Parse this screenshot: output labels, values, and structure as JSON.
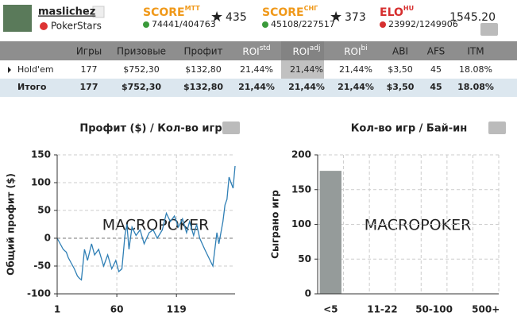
{
  "header": {
    "user": "maslichez",
    "site": "PokerStars",
    "scores": [
      {
        "label": "SCORE",
        "sup": "MTT",
        "rank": "74441/404763",
        "points": "435"
      },
      {
        "label": "SCORE",
        "sup": "СНГ",
        "rank": "45108/227517",
        "points": "373"
      },
      {
        "label": "ELO",
        "sup": "HU",
        "rank": "23992/1249906",
        "points": "1545.20"
      }
    ]
  },
  "table": {
    "columns": [
      "Игры",
      "Призовые",
      "Профит",
      {
        "text": "ROI",
        "sup": "std"
      },
      {
        "text": "ROI",
        "sup": "adj"
      },
      {
        "text": "ROI",
        "sup": "bi"
      },
      "ABI",
      "AFS",
      "ITM"
    ],
    "rows": [
      [
        "Hold'em",
        "177",
        "$752,30",
        "$132,80",
        "21,44%",
        "21,44%",
        "21,44%",
        "$3,50",
        "45",
        "18.08%"
      ],
      [
        "Итого",
        "177",
        "$752,30",
        "$132,80",
        "21,44%",
        "21,44%",
        "21,44%",
        "$3,50",
        "45",
        "18.08%"
      ]
    ]
  },
  "chart_data": [
    {
      "type": "line",
      "title": "Профит ($) / Кол-во игр",
      "y_label": "Общий профит ($)",
      "watermark": "MACROPOKER",
      "color": "#2f7fb5",
      "x": [
        1,
        4,
        7,
        10,
        12,
        15,
        18,
        21,
        23,
        25,
        28,
        31,
        35,
        38,
        42,
        47,
        51,
        55,
        59,
        62,
        65,
        68,
        70,
        72,
        75,
        79,
        83,
        87,
        92,
        96,
        100,
        105,
        109,
        113,
        117,
        121,
        125,
        129,
        132,
        136,
        139,
        142,
        147,
        151,
        155,
        159,
        161,
        165,
        167,
        169,
        171,
        173,
        175,
        177
      ],
      "values": [
        0,
        -10,
        -20,
        -25,
        -35,
        -45,
        -55,
        -68,
        -72,
        -75,
        -20,
        -40,
        -10,
        -30,
        -20,
        -50,
        -30,
        -55,
        -40,
        -60,
        -55,
        5,
        25,
        -20,
        20,
        5,
        15,
        -10,
        10,
        15,
        0,
        15,
        45,
        30,
        40,
        20,
        35,
        10,
        30,
        5,
        25,
        0,
        -20,
        -35,
        -50,
        10,
        -10,
        30,
        60,
        70,
        110,
        100,
        90,
        130
      ],
      "xlim": [
        1,
        177
      ],
      "xticks": [
        1,
        60,
        119
      ],
      "ylim": [
        -100,
        150
      ],
      "yticks": [
        -100,
        -50,
        0,
        50,
        100,
        150
      ],
      "grid": true
    },
    {
      "type": "bar",
      "title": "Кол-во игр / Бай-ин",
      "y_label": "Сыграно игр",
      "watermark": "MACROPOKER",
      "color": "#959b9a",
      "categories": [
        "<5",
        null,
        "11-22",
        null,
        "50-100",
        null,
        "500+"
      ],
      "values": [
        177,
        0,
        0,
        0,
        0,
        0,
        0
      ],
      "ylim": [
        0,
        200
      ],
      "yticks": [
        0,
        50,
        100,
        150,
        200
      ],
      "grid": true
    }
  ]
}
